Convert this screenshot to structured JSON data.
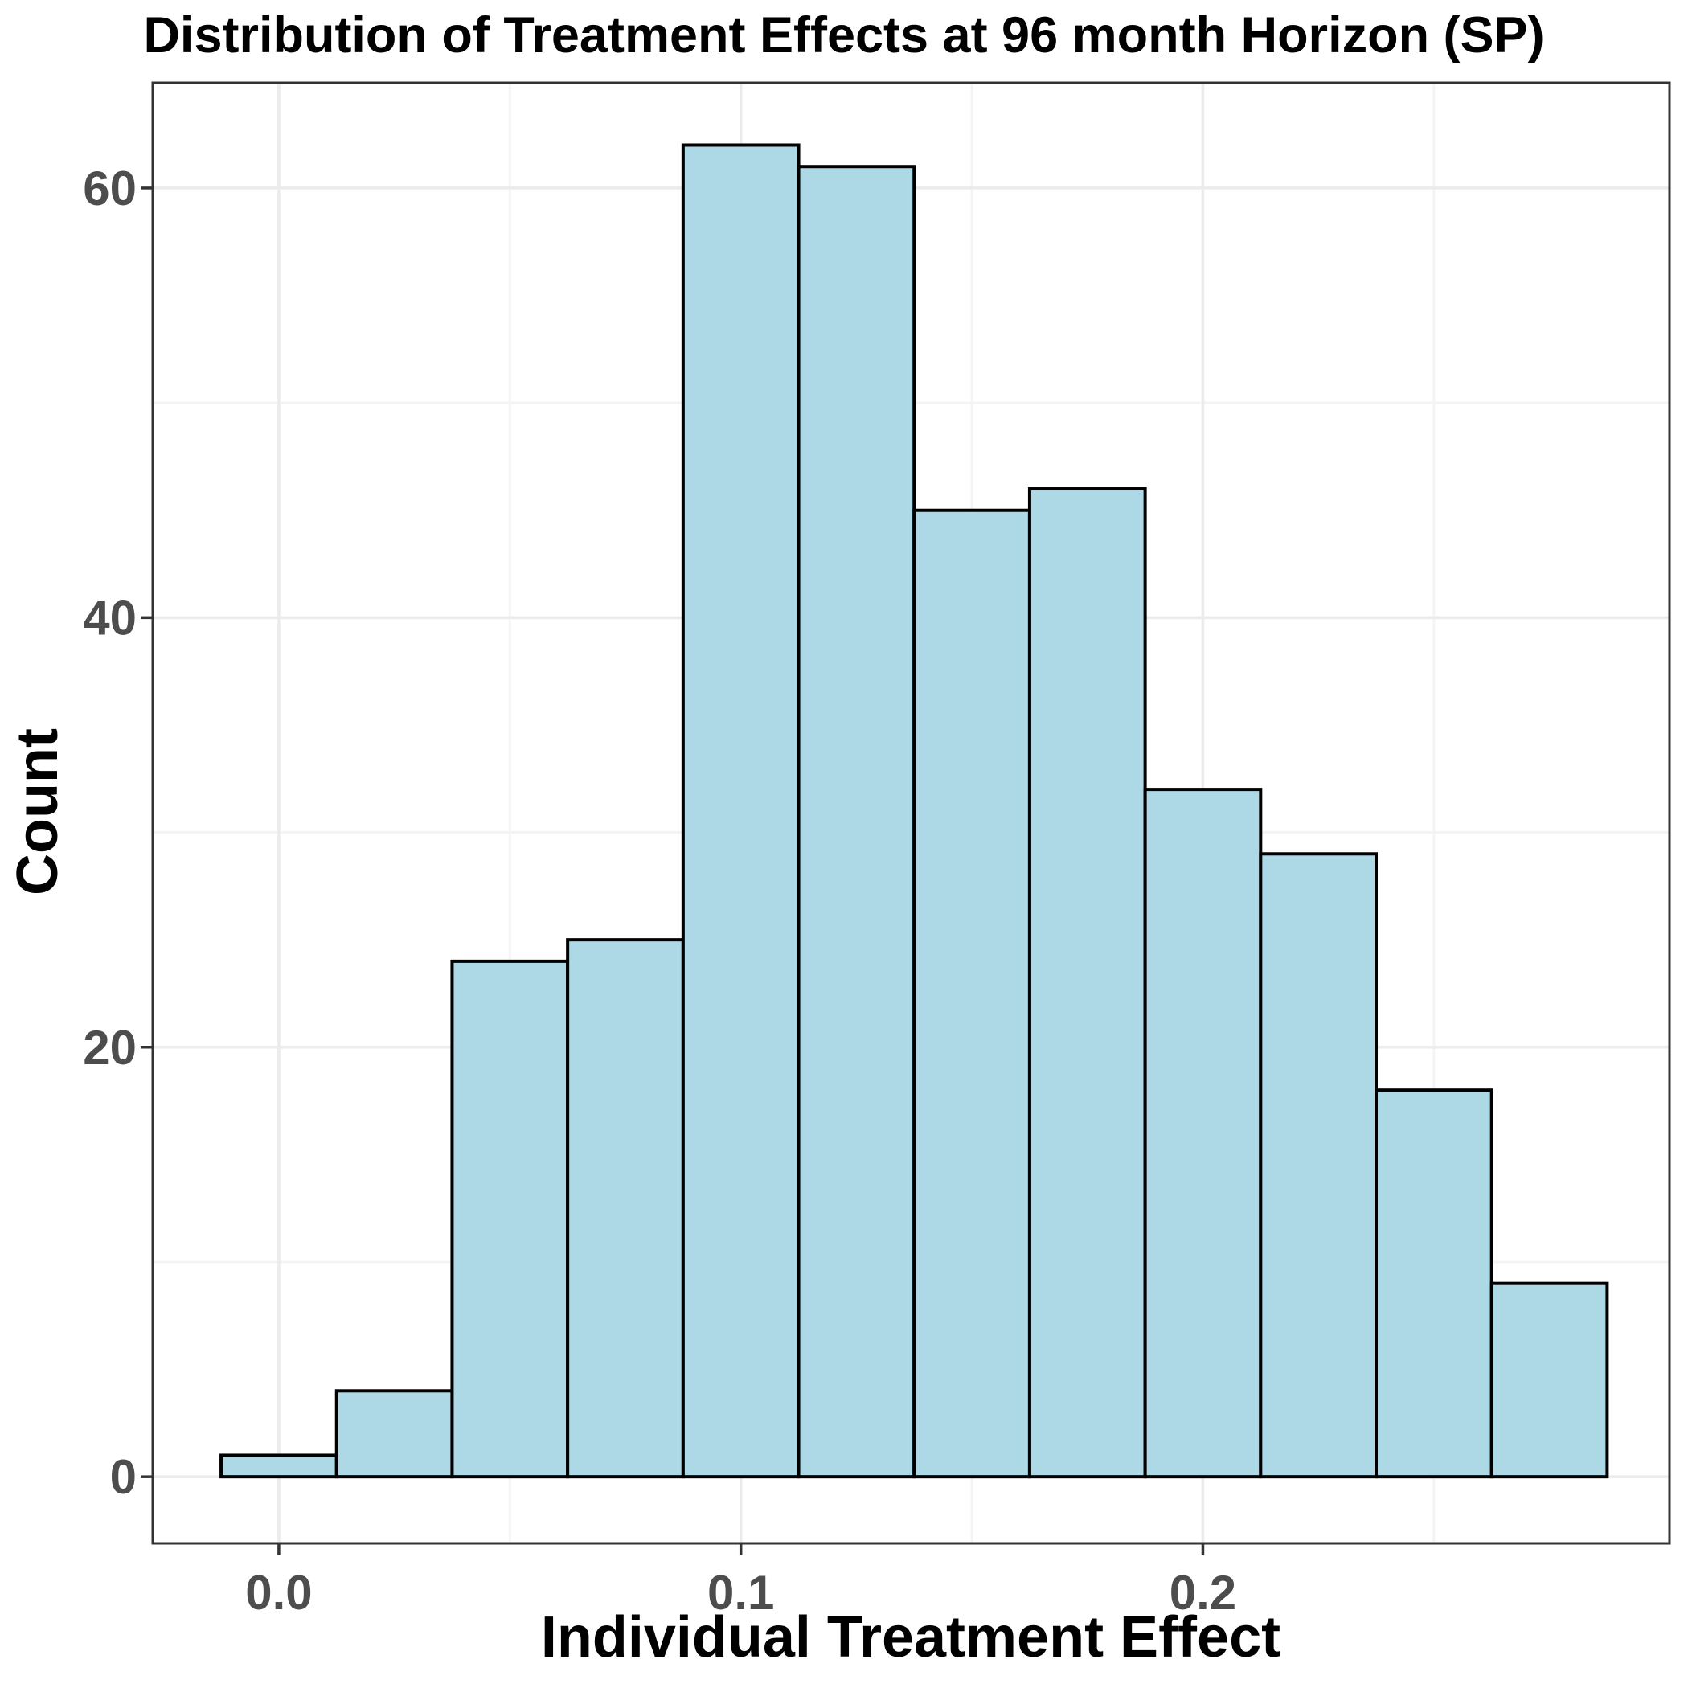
{
  "chart_data": {
    "type": "bar",
    "subtype": "histogram",
    "title": "Distribution of Treatment Effects at 96 month Horizon (SP)",
    "xlabel": "Individual Treatment Effect",
    "ylabel": "Count",
    "bin_start": -0.0125,
    "bin_width": 0.025,
    "counts": [
      1,
      4,
      24,
      25,
      62,
      61,
      45,
      46,
      32,
      29,
      18,
      9
    ],
    "bin_centers": [
      0.0,
      0.025,
      0.05,
      0.075,
      0.1,
      0.125,
      0.15,
      0.175,
      0.2,
      0.225,
      0.25,
      0.275
    ],
    "x_tick_values": [
      0.0,
      0.1,
      0.2
    ],
    "x_tick_labels": [
      "0.0",
      "0.1",
      "0.2"
    ],
    "x_minor_tick_values": [
      0.05,
      0.15,
      0.25
    ],
    "y_tick_values": [
      0,
      20,
      40,
      60
    ],
    "y_tick_labels": [
      "0",
      "20",
      "40",
      "60"
    ],
    "y_minor_tick_values": [
      10,
      30,
      50
    ],
    "xlim": [
      -0.0273,
      0.301
    ],
    "ylim": [
      -3.1,
      64.9
    ],
    "grid": {
      "major": true,
      "minor": true
    },
    "legend_position": "none",
    "colors": {
      "bar_fill": "#ADD8E6",
      "bar_stroke": "#000000",
      "background": "#FFFFFF",
      "panel_background": "#FFFFFF",
      "grid_major": "#EBEBEB",
      "grid_minor": "#F4F4F4",
      "panel_border": "#333333",
      "tick_mark": "#333333",
      "tick_label": "#4D4D4D",
      "axis_title": "#000000",
      "title": "#000000"
    }
  }
}
